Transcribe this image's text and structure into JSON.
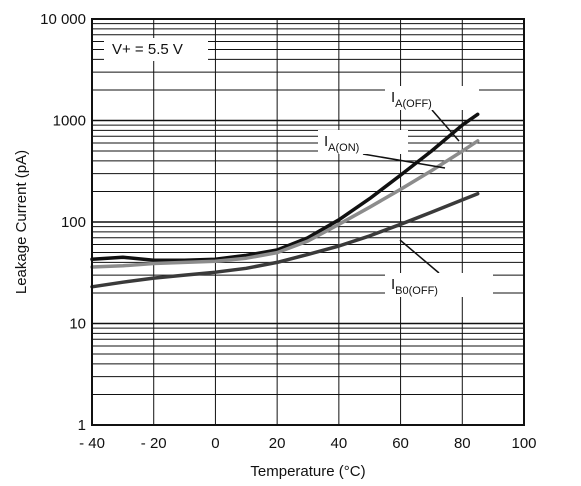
{
  "chart_data": {
    "type": "line",
    "title": "",
    "xlabel": "Temperature (°C)",
    "ylabel": "Leakage Current (pA)",
    "xlim": [
      -40,
      100
    ],
    "ylim": [
      1,
      10000
    ],
    "yscale": "log",
    "grid": true,
    "x_ticks": [
      -40,
      -20,
      0,
      20,
      40,
      60,
      80,
      100
    ],
    "x_tick_labels": [
      "- 40",
      "- 20",
      "0",
      "20",
      "40",
      "60",
      "80",
      "100"
    ],
    "y_ticks": [
      1,
      10,
      100,
      1000,
      10000
    ],
    "y_tick_labels": [
      "1",
      "10",
      "100",
      "1000",
      "10 000"
    ],
    "annotation": "V+ = 5.5 V",
    "series": [
      {
        "name_main": "I",
        "name_sub": "A(OFF)",
        "color": "#111111",
        "x": [
          -40,
          -30,
          -20,
          -10,
          0,
          10,
          20,
          30,
          40,
          50,
          60,
          70,
          80,
          85
        ],
        "y": [
          43,
          45,
          42,
          42,
          43,
          47,
          53,
          70,
          105,
          170,
          290,
          500,
          900,
          1150
        ]
      },
      {
        "name_main": "I",
        "name_sub": "A(ON)",
        "color": "#8c8c8c",
        "x": [
          -40,
          -30,
          -20,
          -10,
          0,
          10,
          20,
          30,
          40,
          50,
          60,
          70,
          80,
          85
        ],
        "y": [
          36,
          37,
          39,
          40,
          41,
          44,
          50,
          65,
          95,
          140,
          210,
          320,
          500,
          630
        ]
      },
      {
        "name_main": "I",
        "name_sub": "B0(OFF)",
        "color": "#3a3a3a",
        "x": [
          -40,
          -30,
          -20,
          -10,
          0,
          10,
          20,
          30,
          40,
          50,
          60,
          70,
          80,
          85
        ],
        "y": [
          23,
          25.5,
          28,
          30,
          32,
          35,
          40,
          48,
          58,
          73,
          95,
          125,
          165,
          190
        ]
      }
    ]
  }
}
